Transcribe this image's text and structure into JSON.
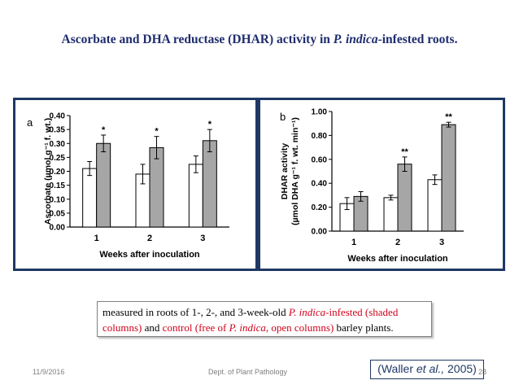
{
  "slide": {
    "title_part1": "Ascorbate and DHA reductase (DHAR) activity in ",
    "title_italic": "P. indica",
    "title_part2": "-infested roots.",
    "panel_a_label": "a",
    "panel_b_label": "b"
  },
  "caption": {
    "part1": "measured in roots of 1-, 2-, and 3-week-old ",
    "italic1": "P. indica",
    "part2": "-infested (shaded columns)",
    "part3": " and ",
    "part4": "control (free of ",
    "italic2": "P. indica",
    "part5": ", open columns)",
    "part6": " barley plants."
  },
  "footer": {
    "date": "11/9/2016",
    "department": "Dept. of Plant Pathology",
    "page": "28"
  },
  "citation": {
    "open": "(Waller ",
    "italic": "et al.,",
    "close": " 2005)"
  },
  "colors": {
    "shaded": "#a6a6a6",
    "open": "#ffffff",
    "border": "#1f3864",
    "title": "#1f2d6e",
    "caption_red": "#d0021b"
  },
  "chart_data": [
    {
      "type": "bar",
      "panel": "a",
      "categories": [
        "1",
        "2",
        "3"
      ],
      "xlabel": "Weeks after inoculation",
      "ylabel": "Ascorbate (µmol g⁻¹ f. wt.)",
      "ylim": [
        0,
        0.4
      ],
      "yticks": [
        "0.00",
        "0.05",
        "0.10",
        "0.15",
        "0.20",
        "0.25",
        "0.30",
        "0.35",
        "0.40"
      ],
      "series": [
        {
          "fill": "open",
          "values": [
            0.21,
            0.19,
            0.225
          ],
          "errors": [
            0.025,
            0.035,
            0.03
          ],
          "labels": [
            "",
            "",
            ""
          ]
        },
        {
          "fill": "shaded",
          "values": [
            0.3,
            0.285,
            0.31
          ],
          "errors": [
            0.03,
            0.04,
            0.04
          ],
          "labels": [
            "*",
            "*",
            "*"
          ]
        }
      ]
    },
    {
      "type": "bar",
      "panel": "b",
      "categories": [
        "1",
        "2",
        "3"
      ],
      "xlabel": "Weeks after inoculation",
      "ylabel_line1": "DHAR activity",
      "ylabel_line2": "(µmol DHA g⁻¹ f. wt. min⁻¹)",
      "ylim": [
        0,
        1.0
      ],
      "yticks": [
        "0.00",
        "0.20",
        "0.40",
        "0.60",
        "0.80",
        "1.00"
      ],
      "series": [
        {
          "fill": "open",
          "values": [
            0.23,
            0.28,
            0.43
          ],
          "errors": [
            0.05,
            0.02,
            0.04
          ],
          "labels": [
            "",
            "",
            ""
          ]
        },
        {
          "fill": "shaded",
          "values": [
            0.29,
            0.56,
            0.89
          ],
          "errors": [
            0.04,
            0.06,
            0.02
          ],
          "labels": [
            "",
            "**",
            "**"
          ]
        }
      ]
    }
  ]
}
